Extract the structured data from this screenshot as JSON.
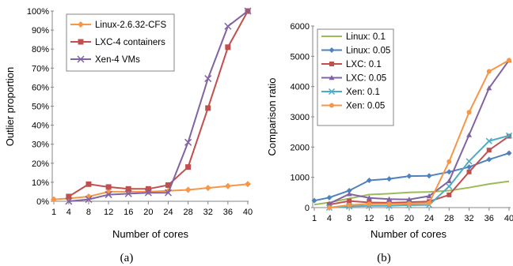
{
  "chart_data": [
    {
      "type": "line",
      "caption": "(a)",
      "xlabel": "Number of cores",
      "ylabel": "Outlier proportion",
      "categories": [
        "1",
        "4",
        "8",
        "12",
        "16",
        "20",
        "24",
        "28",
        "32",
        "36",
        "40"
      ],
      "y_ticks": [
        "0%",
        "10%",
        "20%",
        "30%",
        "40%",
        "50%",
        "60%",
        "70%",
        "80%",
        "90%",
        "100%"
      ],
      "ylim": [
        0,
        100
      ],
      "grid": false,
      "legend": "top-left",
      "series": [
        {
          "name": "Linux-2.6.32-CFS",
          "color": "#f79646",
          "marker": "diamond",
          "values": [
            1,
            1.5,
            2.5,
            5,
            5,
            5,
            5.5,
            6,
            7,
            8,
            9
          ]
        },
        {
          "name": "LXC-4 containers",
          "color": "#c0504d",
          "marker": "square",
          "values": [
            null,
            2.5,
            9,
            7.5,
            6.5,
            6.5,
            8.5,
            18,
            49,
            81,
            100
          ]
        },
        {
          "name": "Xen-4 VMs",
          "color": "#8064a2",
          "marker": "x",
          "values": [
            null,
            0,
            1,
            3.5,
            4,
            4.5,
            4.5,
            31,
            64.5,
            92,
            100
          ]
        }
      ]
    },
    {
      "type": "line",
      "caption": "(b)",
      "xlabel": "Number of cores",
      "ylabel": "Comparison ratio",
      "categories": [
        "1",
        "4",
        "8",
        "12",
        "16",
        "20",
        "24",
        "28",
        "32",
        "36",
        "40"
      ],
      "y_ticks": [
        "0",
        "1000",
        "2000",
        "3000",
        "4000",
        "5000",
        "6000"
      ],
      "ylim": [
        0,
        6000
      ],
      "grid": false,
      "legend": "top-left",
      "series": [
        {
          "name": "Linux: 0.1",
          "color": "#9bbb59",
          "marker": "none",
          "values": [
            100,
            170,
            300,
            430,
            460,
            500,
            520,
            560,
            660,
            780,
            870
          ]
        },
        {
          "name": "Linux: 0.05",
          "color": "#4f81bd",
          "marker": "diamond",
          "values": [
            230,
            330,
            560,
            900,
            950,
            1040,
            1050,
            1180,
            1340,
            1590,
            1800
          ]
        },
        {
          "name": "LXC: 0.1",
          "color": "#c0504d",
          "marker": "square",
          "values": [
            null,
            100,
            220,
            170,
            160,
            180,
            200,
            420,
            1180,
            1900,
            2360
          ]
        },
        {
          "name": "LXC: 0.05",
          "color": "#8064a2",
          "marker": "triangle",
          "values": [
            null,
            130,
            450,
            320,
            280,
            270,
            380,
            880,
            2400,
            3950,
            4870
          ]
        },
        {
          "name": "Xen: 0.1",
          "color": "#4bacc6",
          "marker": "x",
          "values": [
            null,
            0,
            40,
            60,
            60,
            80,
            90,
            700,
            1530,
            2200,
            2380
          ]
        },
        {
          "name": "Xen: 0.05",
          "color": "#f79646",
          "marker": "circle",
          "values": [
            null,
            0,
            80,
            120,
            120,
            130,
            150,
            1520,
            3150,
            4500,
            4870
          ]
        }
      ]
    }
  ]
}
